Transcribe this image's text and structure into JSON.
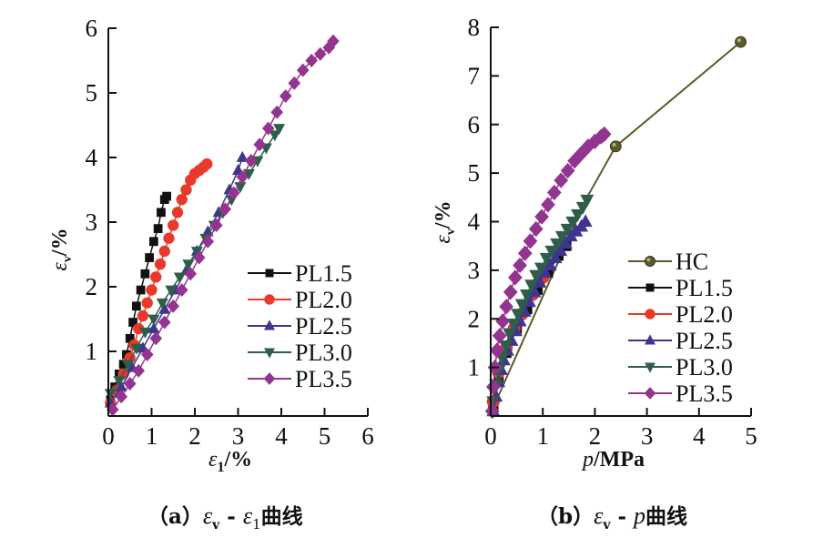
{
  "chart_data": [
    {
      "type": "scatter",
      "id": "a",
      "xlabel": "ε1/%",
      "xlabel_parts": {
        "sym": "ε",
        "sub": "1",
        "unit": "/%"
      },
      "ylabel_parts": {
        "sym": "ε",
        "sub": "v",
        "unit": "/%"
      },
      "caption_parts": {
        "prefix": "（a）",
        "s1": "ε",
        "sub1": "v",
        "dash": " - ",
        "s2": "ε",
        "sub2": "1",
        "suffix": "曲线"
      },
      "xlim": [
        0,
        6
      ],
      "ylim": [
        0,
        6
      ],
      "xticks": [
        "0",
        "1",
        "2",
        "3",
        "4",
        "5",
        "6"
      ],
      "yticks": [
        "1",
        "2",
        "3",
        "4",
        "5",
        "6"
      ],
      "legend": "right",
      "series": [
        {
          "name": "PL1.5",
          "color": "#111111",
          "marker": "square",
          "points": [
            [
              0.05,
              0.25
            ],
            [
              0.15,
              0.45
            ],
            [
              0.25,
              0.65
            ],
            [
              0.35,
              0.8
            ],
            [
              0.42,
              0.95
            ],
            [
              0.5,
              1.2
            ],
            [
              0.57,
              1.45
            ],
            [
              0.65,
              1.7
            ],
            [
              0.75,
              1.95
            ],
            [
              0.85,
              2.2
            ],
            [
              0.95,
              2.45
            ],
            [
              1.05,
              2.7
            ],
            [
              1.15,
              2.9
            ],
            [
              1.22,
              3.15
            ],
            [
              1.3,
              3.35
            ],
            [
              1.35,
              3.4
            ]
          ]
        },
        {
          "name": "PL2.0",
          "color": "#e8392a",
          "marker": "circle",
          "points": [
            [
              0.05,
              0.2
            ],
            [
              0.2,
              0.4
            ],
            [
              0.35,
              0.65
            ],
            [
              0.5,
              0.9
            ],
            [
              0.6,
              1.1
            ],
            [
              0.7,
              1.35
            ],
            [
              0.8,
              1.55
            ],
            [
              0.9,
              1.75
            ],
            [
              1.0,
              1.95
            ],
            [
              1.1,
              2.15
            ],
            [
              1.2,
              2.35
            ],
            [
              1.3,
              2.55
            ],
            [
              1.4,
              2.75
            ],
            [
              1.5,
              2.95
            ],
            [
              1.6,
              3.15
            ],
            [
              1.7,
              3.35
            ],
            [
              1.8,
              3.5
            ],
            [
              1.9,
              3.65
            ],
            [
              2.0,
              3.75
            ],
            [
              2.1,
              3.8
            ],
            [
              2.2,
              3.85
            ],
            [
              2.28,
              3.9
            ]
          ]
        },
        {
          "name": "PL2.5",
          "color": "#3f3590",
          "marker": "triangle-up",
          "points": [
            [
              0.05,
              0.2
            ],
            [
              0.3,
              0.45
            ],
            [
              0.55,
              0.75
            ],
            [
              0.8,
              1.05
            ],
            [
              1.05,
              1.35
            ],
            [
              1.3,
              1.65
            ],
            [
              1.55,
              1.95
            ],
            [
              1.8,
              2.25
            ],
            [
              2.05,
              2.55
            ],
            [
              2.3,
              2.85
            ],
            [
              2.55,
              3.15
            ],
            [
              2.8,
              3.5
            ],
            [
              3.0,
              3.8
            ],
            [
              3.1,
              4.0
            ]
          ]
        },
        {
          "name": "PL3.0",
          "color": "#2e5e4a",
          "marker": "triangle-down",
          "points": [
            [
              0.05,
              0.35
            ],
            [
              0.25,
              0.55
            ],
            [
              0.45,
              0.8
            ],
            [
              0.65,
              1.05
            ],
            [
              0.85,
              1.3
            ],
            [
              1.05,
              1.5
            ],
            [
              1.25,
              1.75
            ],
            [
              1.45,
              1.95
            ],
            [
              1.65,
              2.15
            ],
            [
              1.85,
              2.35
            ],
            [
              2.05,
              2.55
            ],
            [
              2.25,
              2.75
            ],
            [
              2.45,
              2.95
            ],
            [
              2.65,
              3.15
            ],
            [
              2.85,
              3.35
            ],
            [
              3.05,
              3.55
            ],
            [
              3.25,
              3.75
            ],
            [
              3.45,
              3.95
            ],
            [
              3.65,
              4.15
            ],
            [
              3.85,
              4.35
            ],
            [
              3.95,
              4.45
            ]
          ]
        },
        {
          "name": "PL3.5",
          "color": "#93358f",
          "marker": "diamond",
          "points": [
            [
              0.1,
              0.1
            ],
            [
              0.3,
              0.3
            ],
            [
              0.5,
              0.5
            ],
            [
              0.7,
              0.7
            ],
            [
              0.9,
              0.95
            ],
            [
              1.1,
              1.2
            ],
            [
              1.3,
              1.45
            ],
            [
              1.5,
              1.7
            ],
            [
              1.7,
              1.95
            ],
            [
              1.9,
              2.2
            ],
            [
              2.1,
              2.45
            ],
            [
              2.3,
              2.7
            ],
            [
              2.5,
              2.95
            ],
            [
              2.7,
              3.2
            ],
            [
              2.9,
              3.45
            ],
            [
              3.1,
              3.7
            ],
            [
              3.3,
              3.95
            ],
            [
              3.5,
              4.2
            ],
            [
              3.7,
              4.45
            ],
            [
              3.9,
              4.7
            ],
            [
              4.1,
              4.95
            ],
            [
              4.3,
              5.15
            ],
            [
              4.5,
              5.35
            ],
            [
              4.7,
              5.5
            ],
            [
              4.9,
              5.6
            ],
            [
              5.1,
              5.7
            ],
            [
              5.2,
              5.8
            ]
          ]
        }
      ]
    },
    {
      "type": "scatter",
      "id": "b",
      "xlabel": "p/MPa",
      "xlabel_parts": {
        "sym": "p",
        "unit": "/MPa"
      },
      "ylabel_parts": {
        "sym": "ε",
        "sub": "v",
        "unit": "/%"
      },
      "caption_parts": {
        "prefix": "（b）",
        "s1": "ε",
        "sub1": "v",
        "dash": " - ",
        "s2": "p",
        "suffix": "曲线"
      },
      "xlim": [
        0,
        5
      ],
      "ylim": [
        0,
        8
      ],
      "xticks": [
        "0",
        "1",
        "2",
        "3",
        "4",
        "5"
      ],
      "yticks": [
        "1",
        "2",
        "3",
        "4",
        "5",
        "6",
        "7",
        "8"
      ],
      "legend": "right",
      "series": [
        {
          "name": "HC",
          "color": "#5a5a2a",
          "marker": "ball",
          "points": [
            [
              0.1,
              0.3
            ],
            [
              1.85,
              4.5
            ],
            [
              2.4,
              5.55
            ],
            [
              4.8,
              7.7
            ]
          ],
          "hidden_markers": [
            0,
            1
          ]
        },
        {
          "name": "PL1.5",
          "color": "#111111",
          "marker": "square",
          "points": [
            [
              0.05,
              0.2
            ],
            [
              0.15,
              0.8
            ],
            [
              0.3,
              1.3
            ],
            [
              0.5,
              1.8
            ],
            [
              0.7,
              2.2
            ],
            [
              0.9,
              2.6
            ],
            [
              1.1,
              2.95
            ],
            [
              1.3,
              3.3
            ],
            [
              1.45,
              3.5
            ]
          ]
        },
        {
          "name": "PL2.0",
          "color": "#e8392a",
          "marker": "circle",
          "points": [
            [
              0.05,
              0.3
            ],
            [
              0.15,
              0.9
            ],
            [
              0.3,
              1.4
            ],
            [
              0.45,
              1.8
            ],
            [
              0.6,
              2.1
            ],
            [
              0.8,
              2.5
            ],
            [
              1.0,
              2.85
            ]
          ]
        },
        {
          "name": "PL2.5",
          "color": "#3f3590",
          "marker": "triangle-up",
          "points": [
            [
              0.05,
              0.1
            ],
            [
              0.1,
              0.4
            ],
            [
              0.15,
              0.7
            ],
            [
              0.2,
              0.95
            ],
            [
              0.25,
              1.15
            ],
            [
              0.32,
              1.35
            ],
            [
              0.4,
              1.55
            ],
            [
              0.48,
              1.75
            ],
            [
              0.56,
              1.95
            ],
            [
              0.65,
              2.15
            ],
            [
              0.74,
              2.35
            ],
            [
              0.84,
              2.55
            ],
            [
              0.94,
              2.75
            ],
            [
              1.04,
              2.95
            ],
            [
              1.14,
              3.1
            ],
            [
              1.24,
              3.25
            ],
            [
              1.34,
              3.4
            ],
            [
              1.44,
              3.55
            ],
            [
              1.54,
              3.7
            ],
            [
              1.64,
              3.8
            ],
            [
              1.74,
              3.9
            ],
            [
              1.82,
              4.0
            ]
          ]
        },
        {
          "name": "PL3.0",
          "color": "#2e5e4a",
          "marker": "triangle-down",
          "points": [
            [
              0.05,
              0.3
            ],
            [
              0.1,
              0.65
            ],
            [
              0.16,
              0.95
            ],
            [
              0.22,
              1.2
            ],
            [
              0.29,
              1.45
            ],
            [
              0.36,
              1.7
            ],
            [
              0.44,
              1.9
            ],
            [
              0.52,
              2.1
            ],
            [
              0.6,
              2.3
            ],
            [
              0.69,
              2.5
            ],
            [
              0.78,
              2.7
            ],
            [
              0.87,
              2.9
            ],
            [
              0.97,
              3.05
            ],
            [
              1.07,
              3.25
            ],
            [
              1.17,
              3.4
            ],
            [
              1.27,
              3.55
            ],
            [
              1.37,
              3.7
            ],
            [
              1.47,
              3.85
            ],
            [
              1.57,
              4.0
            ],
            [
              1.67,
              4.15
            ],
            [
              1.77,
              4.3
            ],
            [
              1.85,
              4.45
            ]
          ]
        },
        {
          "name": "PL3.5",
          "color": "#93358f",
          "marker": "diamond",
          "points": [
            [
              0.03,
              0.1
            ],
            [
              0.05,
              0.6
            ],
            [
              0.08,
              1.0
            ],
            [
              0.12,
              1.35
            ],
            [
              0.17,
              1.65
            ],
            [
              0.23,
              1.95
            ],
            [
              0.3,
              2.25
            ],
            [
              0.38,
              2.55
            ],
            [
              0.47,
              2.85
            ],
            [
              0.56,
              3.1
            ],
            [
              0.66,
              3.35
            ],
            [
              0.76,
              3.6
            ],
            [
              0.87,
              3.85
            ],
            [
              0.98,
              4.1
            ],
            [
              1.1,
              4.35
            ],
            [
              1.22,
              4.6
            ],
            [
              1.35,
              4.85
            ],
            [
              1.48,
              5.05
            ],
            [
              1.61,
              5.25
            ],
            [
              1.74,
              5.4
            ],
            [
              1.87,
              5.55
            ],
            [
              2.0,
              5.65
            ],
            [
              2.12,
              5.75
            ],
            [
              2.18,
              5.8
            ]
          ]
        }
      ]
    }
  ]
}
